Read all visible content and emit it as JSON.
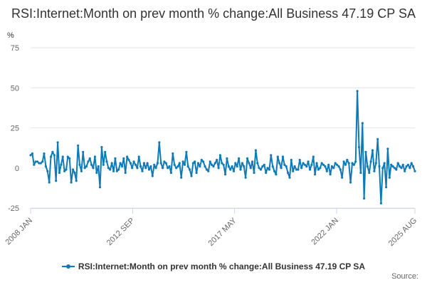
{
  "chart_data": {
    "type": "line",
    "title": "RSI:Internet:Month on prev month % change:All Business 47.19 CP SA",
    "ylabel": "%",
    "xlabel": "",
    "ylim": [
      -25,
      75
    ],
    "y_ticks": [
      -25,
      0,
      25,
      50,
      75
    ],
    "x_start": "2008-01",
    "x_end": "2025-08",
    "x_tick_labels": [
      {
        "date": "2008-01",
        "label": "2008 JAN"
      },
      {
        "date": "2012-09",
        "label": "2012 SEP"
      },
      {
        "date": "2017-05",
        "label": "2017 MAY"
      },
      {
        "date": "2022-01",
        "label": "2022 JAN"
      },
      {
        "date": "2025-08",
        "label": "2025 AUG"
      }
    ],
    "grid": true,
    "legend_position": "bottom",
    "series": [
      {
        "name": "RSI:Internet:Month on prev month % change:All Business 47.19 CP SA",
        "color": "#0e7ab8",
        "values": [
          8,
          9,
          2,
          4,
          4,
          3,
          3,
          4,
          9,
          1,
          -2,
          -9,
          7,
          10,
          8,
          -8,
          16,
          -3,
          2,
          7,
          -2,
          -1,
          7,
          6,
          -9,
          -1,
          -3,
          -8,
          14,
          2,
          -2,
          10,
          0,
          1,
          4,
          6,
          2,
          0,
          7,
          -3,
          1,
          -12,
          13,
          2,
          10,
          4,
          0,
          -1,
          3,
          -2,
          6,
          -2,
          -1,
          3,
          1,
          6,
          -3,
          7,
          5,
          3,
          0,
          4,
          2,
          0,
          7,
          1,
          -2,
          3,
          0,
          3,
          -1,
          1,
          -5,
          2,
          0,
          3,
          16,
          3,
          0,
          4,
          3,
          0,
          1,
          -3,
          9,
          2,
          0,
          1,
          3,
          -6,
          4,
          2,
          10,
          1,
          -1,
          -5,
          3,
          4,
          -3,
          3,
          1,
          5,
          4,
          1,
          -1,
          -2,
          4,
          2,
          1,
          3,
          5,
          0,
          8,
          3,
          2,
          -4,
          6,
          1,
          -1,
          1,
          -2,
          3,
          1,
          6,
          -1,
          3,
          1,
          -6,
          6,
          3,
          0,
          4,
          -3,
          11,
          3,
          0,
          -1,
          1,
          2,
          -3,
          0,
          -1,
          8,
          1,
          -2,
          -4,
          7,
          3,
          0,
          7,
          2,
          1,
          -3,
          -6,
          5,
          -2,
          1,
          -1,
          -1,
          5,
          0,
          3,
          2,
          1,
          4,
          -1,
          2,
          7,
          -4,
          3,
          -1,
          0,
          3,
          2,
          1,
          -2,
          2,
          -4,
          1,
          0,
          3,
          2,
          1,
          -1,
          -6,
          4,
          2,
          5,
          3,
          -9,
          3,
          2,
          4,
          48,
          13,
          -3,
          28,
          -19,
          10,
          1,
          -3,
          4,
          11,
          -2,
          3,
          18,
          1,
          -22,
          0,
          3,
          -12,
          12,
          -6,
          2,
          1,
          0,
          -1,
          3,
          1,
          0,
          2,
          -2,
          1,
          2,
          0,
          3,
          1,
          -2
        ]
      }
    ]
  },
  "source": {
    "label": "Source:"
  }
}
